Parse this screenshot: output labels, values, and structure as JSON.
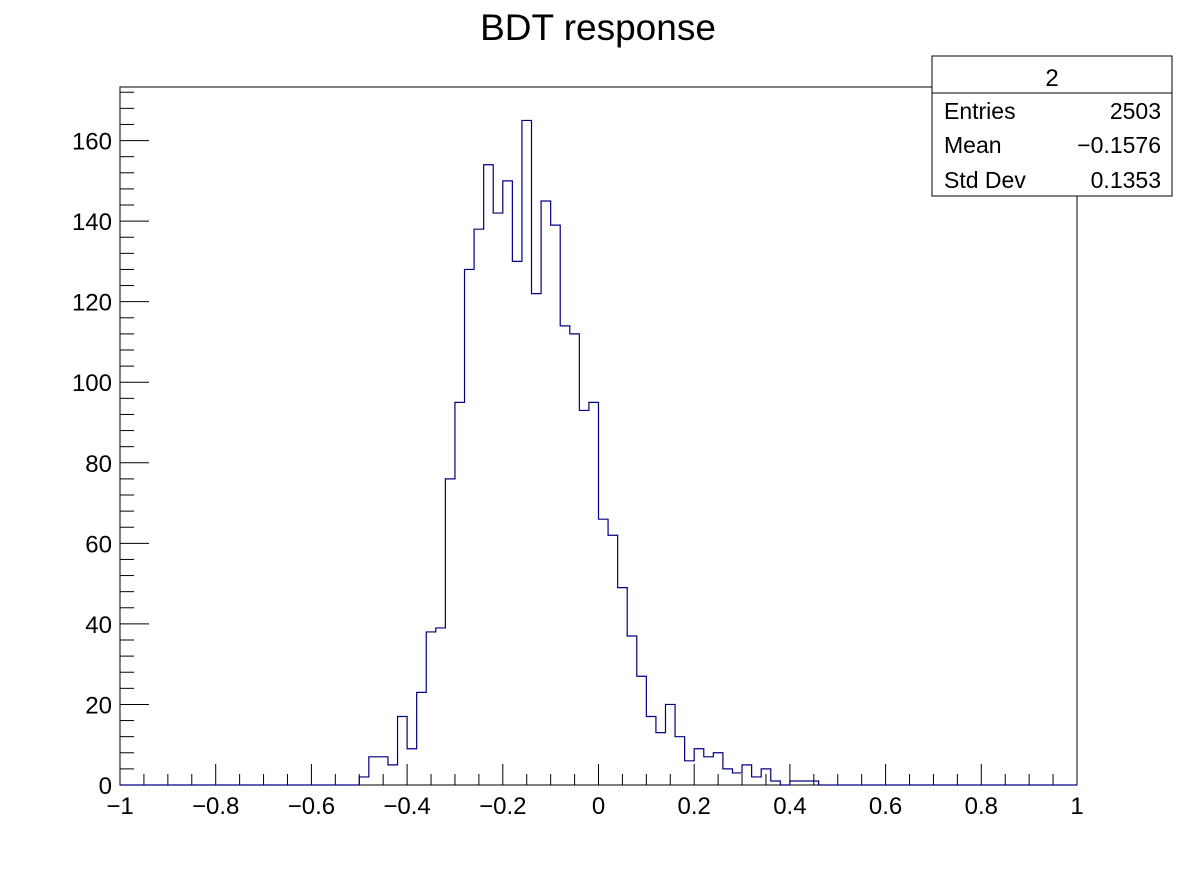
{
  "chart_data": {
    "type": "histogram",
    "title": "BDT response",
    "xlabel": "",
    "ylabel": "",
    "xlim": [
      -1,
      1
    ],
    "ylim": [
      0,
      173.3
    ],
    "x_ticks": [
      -1,
      -0.8,
      -0.6,
      -0.4,
      -0.2,
      0,
      0.2,
      0.4,
      0.6,
      0.8,
      1
    ],
    "x_tick_labels": [
      "−1",
      "−0.8",
      "−0.6",
      "−0.4",
      "−0.2",
      "0",
      "0.2",
      "0.4",
      "0.6",
      "0.8",
      "1"
    ],
    "y_ticks": [
      0,
      20,
      40,
      60,
      80,
      100,
      120,
      140,
      160
    ],
    "y_tick_labels": [
      "0",
      "20",
      "40",
      "60",
      "80",
      "100",
      "120",
      "140",
      "160"
    ],
    "grid": false,
    "series": [
      {
        "name": "2",
        "color": "#000080",
        "bin_edges": [
          -1,
          1
        ],
        "bin_count": 100,
        "values": [
          0,
          0,
          0,
          0,
          0,
          0,
          0,
          0,
          0,
          0,
          0,
          0,
          0,
          0,
          0,
          0,
          0,
          0,
          0,
          0,
          0,
          0,
          0,
          0,
          0,
          2,
          7,
          7,
          5,
          17,
          9,
          23,
          38,
          39,
          76,
          95,
          128,
          138,
          154,
          142,
          150,
          130,
          165,
          122,
          145,
          139,
          114,
          112,
          93,
          95,
          66,
          62,
          49,
          37,
          27,
          17,
          13,
          20,
          12,
          6,
          9,
          7,
          8,
          4,
          3,
          5,
          2,
          4,
          1,
          0,
          1,
          1,
          1,
          0,
          0,
          0,
          0,
          0,
          0,
          0,
          0,
          0,
          0,
          0,
          0,
          0,
          0,
          0,
          0,
          0,
          0,
          0,
          0,
          0,
          0,
          0,
          0,
          0,
          0,
          0
        ]
      }
    ],
    "stats_box": {
      "title": "2",
      "rows": [
        {
          "label": "Entries",
          "value": "2503"
        },
        {
          "label": "Mean",
          "value": "−0.1576"
        },
        {
          "label": "Std Dev",
          "value": "0.1353"
        }
      ]
    }
  }
}
